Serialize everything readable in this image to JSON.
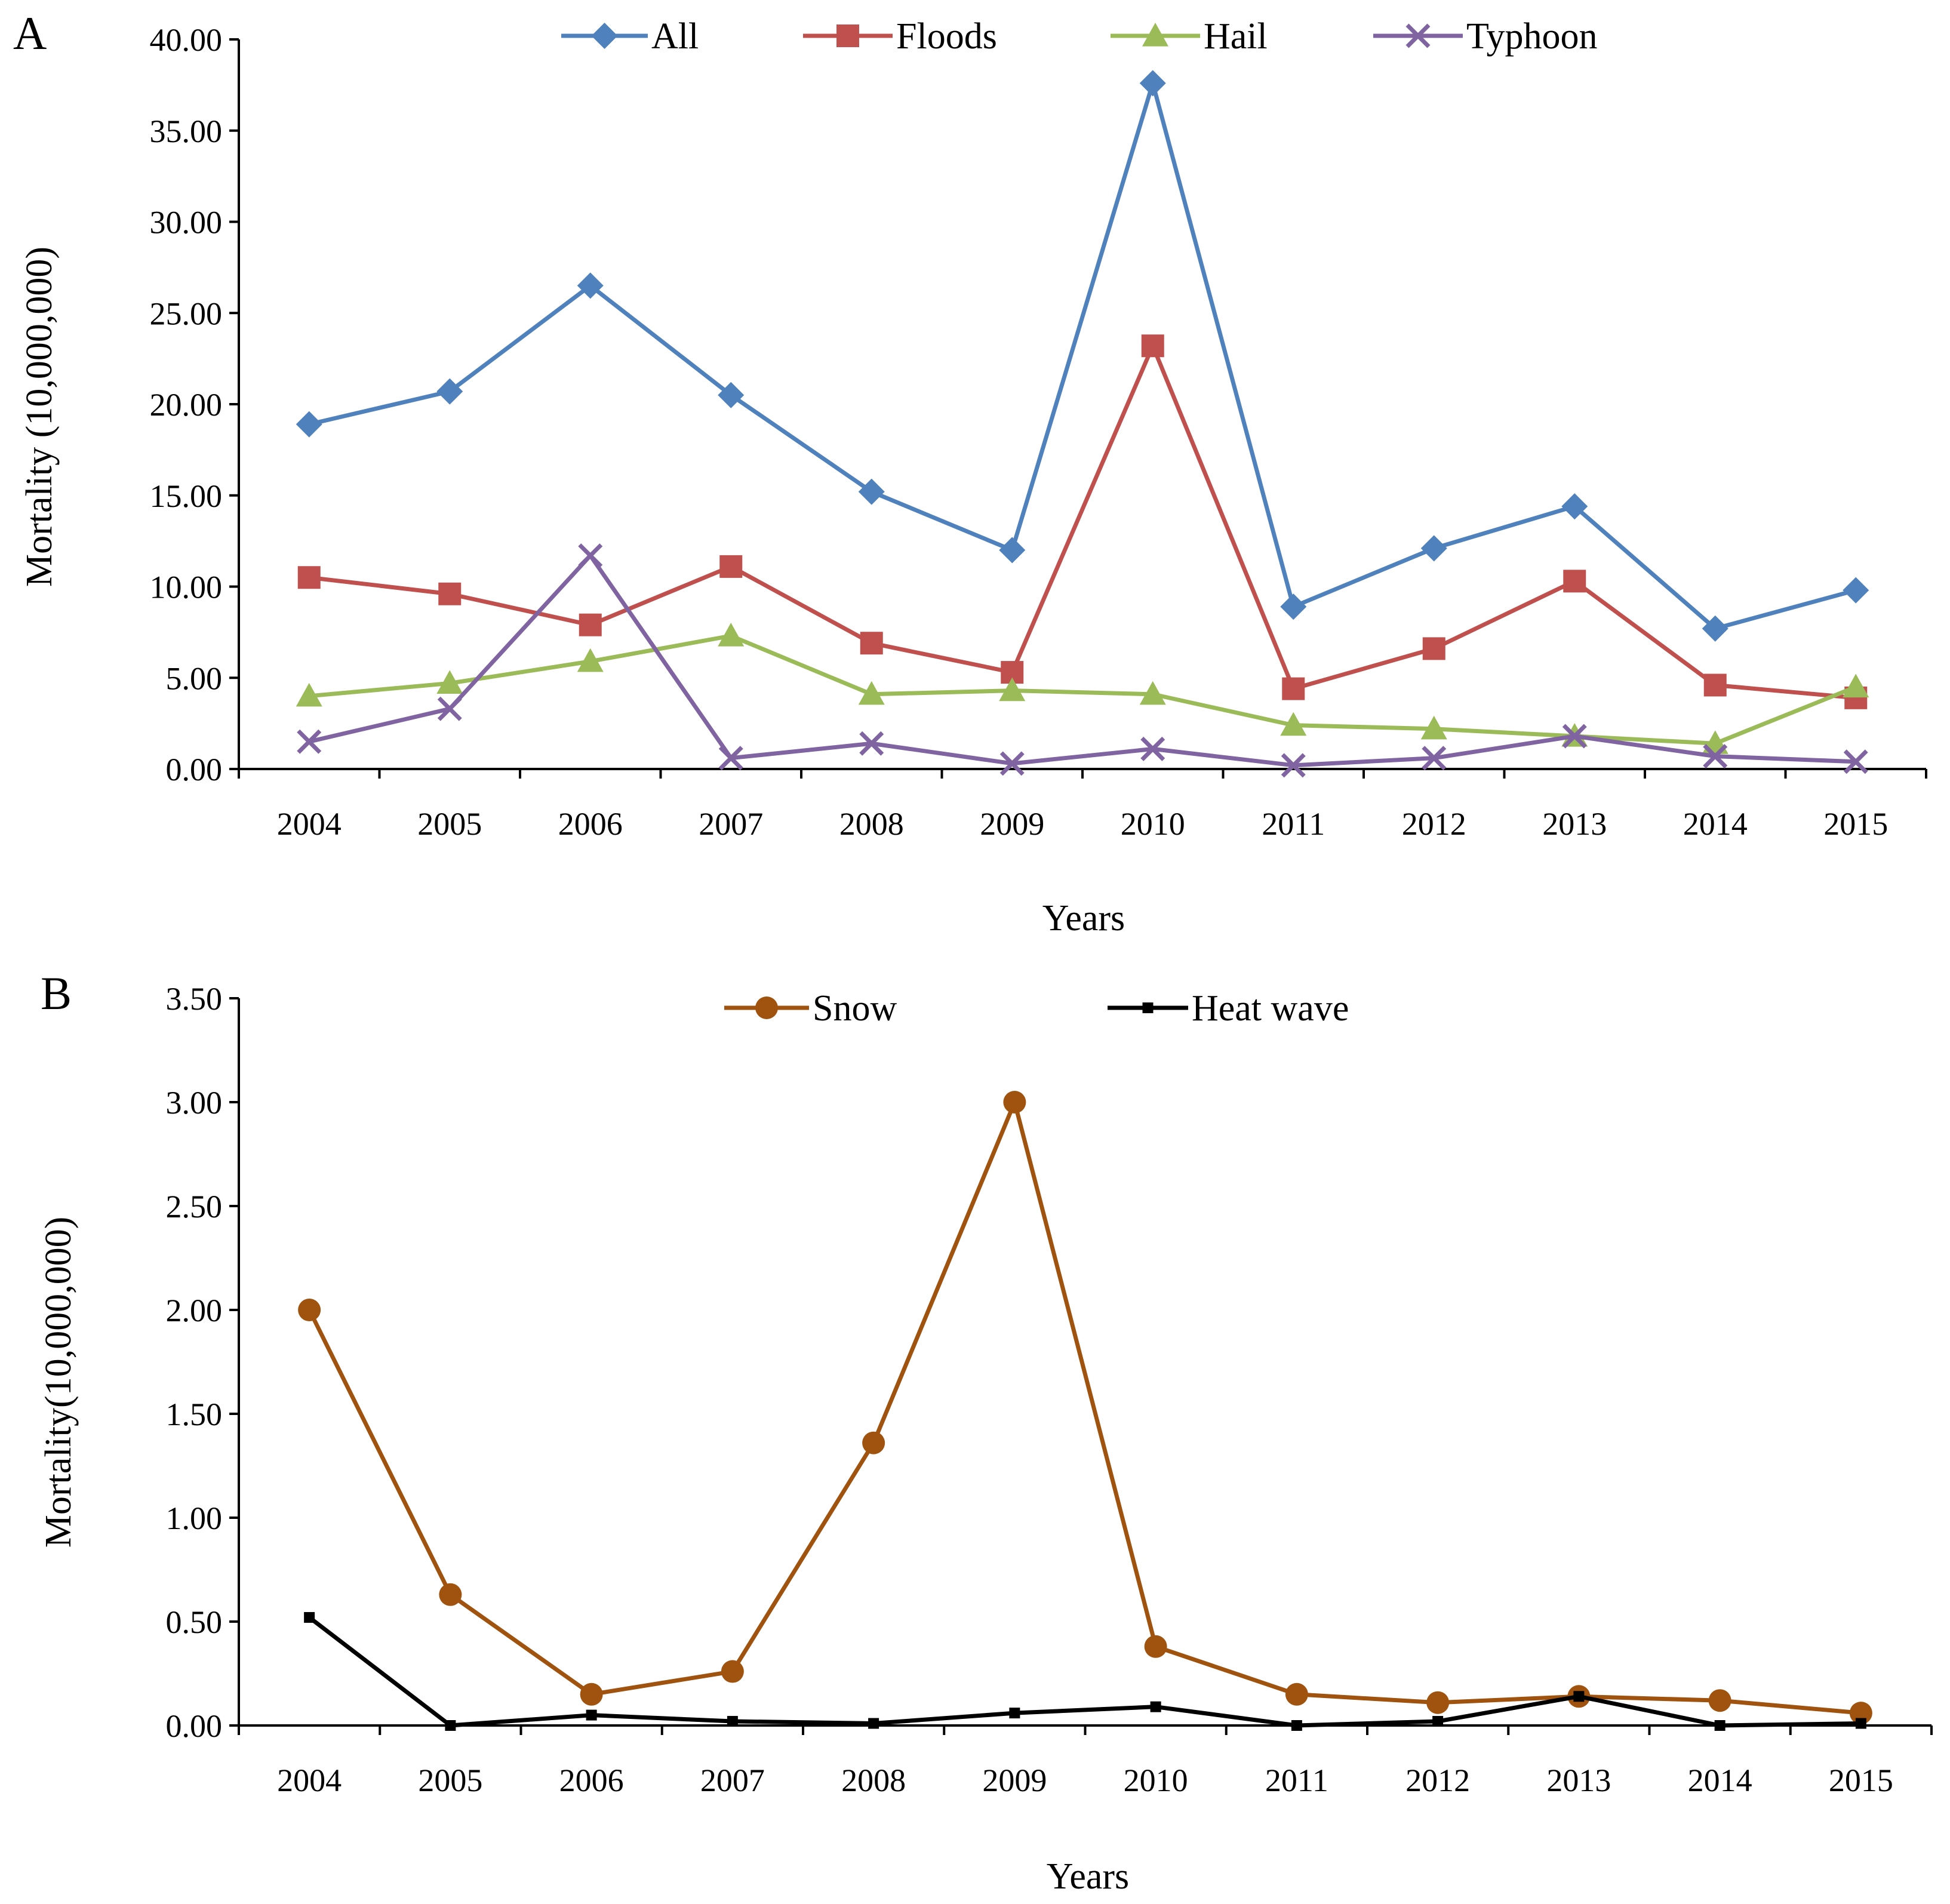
{
  "chart_data": [
    {
      "type": "line",
      "panel": "A",
      "xlabel": "Years",
      "ylabel": "Mortality (10,000,000)",
      "ylim": [
        0,
        40
      ],
      "ytick_step": 5,
      "ytick_decimals": 2,
      "grid": false,
      "legend_position": "top-center",
      "categories": [
        "2004",
        "2005",
        "2006",
        "2007",
        "2008",
        "2009",
        "2010",
        "2011",
        "2012",
        "2013",
        "2014",
        "2015"
      ],
      "series": [
        {
          "name": "All",
          "color": "#4f81bd",
          "marker": "diamond",
          "values": [
            18.9,
            20.7,
            26.5,
            20.5,
            15.2,
            12.0,
            37.6,
            8.9,
            12.1,
            14.4,
            7.7,
            9.8
          ]
        },
        {
          "name": "Floods",
          "color": "#c0504d",
          "marker": "square",
          "values": [
            10.5,
            9.6,
            7.9,
            11.1,
            6.9,
            5.3,
            23.2,
            4.4,
            6.6,
            10.3,
            4.6,
            3.9
          ]
        },
        {
          "name": "Hail",
          "color": "#9bbb59",
          "marker": "triangle",
          "values": [
            4.0,
            4.7,
            5.9,
            7.3,
            4.1,
            4.3,
            4.1,
            2.4,
            2.2,
            1.8,
            1.4,
            4.5
          ]
        },
        {
          "name": "Typhoon",
          "color": "#8064a2",
          "marker": "x",
          "values": [
            1.5,
            3.3,
            11.7,
            0.6,
            1.4,
            0.3,
            1.1,
            0.2,
            0.6,
            1.8,
            0.7,
            0.4
          ]
        }
      ]
    },
    {
      "type": "line",
      "panel": "B",
      "xlabel": "Years",
      "ylabel": "Mortality(10,000,000)",
      "ylim": [
        0,
        3.5
      ],
      "ytick_step": 0.5,
      "ytick_decimals": 2,
      "grid": false,
      "legend_position": "top-center",
      "categories": [
        "2004",
        "2005",
        "2006",
        "2007",
        "2008",
        "2009",
        "2010",
        "2011",
        "2012",
        "2013",
        "2014",
        "2015"
      ],
      "series": [
        {
          "name": "Snow",
          "color": "#a0520f",
          "marker": "circle",
          "values": [
            2.0,
            0.63,
            0.15,
            0.26,
            1.36,
            3.0,
            0.38,
            0.15,
            0.11,
            0.14,
            0.12,
            0.06
          ]
        },
        {
          "name": "Heat wave",
          "color": "#000000",
          "marker": "smallsquare",
          "values": [
            0.52,
            0.0,
            0.05,
            0.02,
            0.01,
            0.06,
            0.09,
            0.0,
            0.02,
            0.14,
            0.0,
            0.01
          ]
        }
      ]
    }
  ]
}
